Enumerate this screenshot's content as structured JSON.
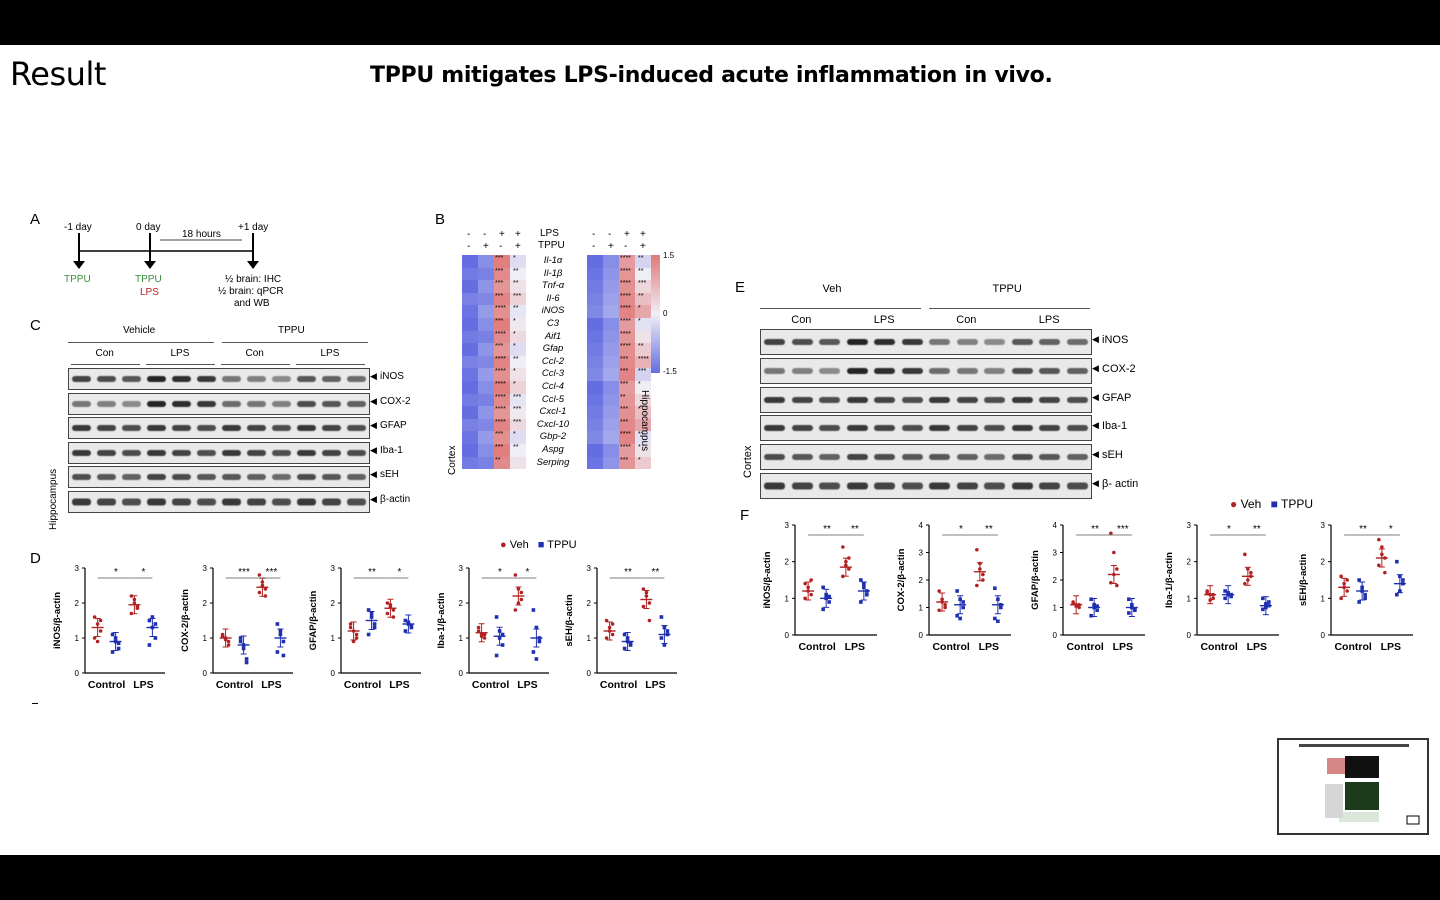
{
  "slide": {
    "section_title": "Result",
    "headline": "TPPU mitigates LPS-induced acute inflammation in vivo."
  },
  "panel_letters": {
    "a": "A",
    "b": "B",
    "c": "C",
    "d": "D",
    "e": "E",
    "f": "F"
  },
  "timeline": {
    "day_minus1": "-1 day",
    "day0": "0 day",
    "day_plus1": "+1 day",
    "interval": "18 hours",
    "tppu1": "TPPU",
    "tppu2": "TPPU",
    "lps": "LPS",
    "endpoint1": "½ brain: IHC",
    "endpoint2": "½ brain: qPCR",
    "endpoint3": "and WB",
    "tppu_color": "#3a8a3a",
    "lps_color": "#b22222"
  },
  "blot_c": {
    "group1": "Vehicle",
    "group2": "TPPU",
    "sub": [
      "Con",
      "LPS",
      "Con",
      "LPS"
    ],
    "tissue": "Hippocampus",
    "rows": [
      "iNOS",
      "COX-2",
      "GFAP",
      "Iba-1",
      "sEH",
      "β-actin"
    ]
  },
  "heatmap": {
    "header_lps": "LPS",
    "header_tppu": "TPPU",
    "signs_lps": [
      "-",
      "-",
      "+",
      "+"
    ],
    "signs_tppu": [
      "-",
      "+",
      "-",
      "+"
    ],
    "genes": [
      "Il-1α",
      "Il-1β",
      "Tnf-α",
      "Il-6",
      "iNOS",
      "C3",
      "Aif1",
      "Gfap",
      "Ccl-2",
      "Ccl-3",
      "Ccl-4",
      "Ccl-5",
      "Cxcl-1",
      "Cxcl-10",
      "Gbp-2",
      "Aspg",
      "Serping"
    ],
    "left_tissue": "Cortex",
    "right_tissue": "Hippocampus",
    "scale_max": "1.5",
    "scale_mid": "0",
    "scale_min": "-1.5",
    "cortex_sig_col3": [
      "***",
      "***",
      "***",
      "***",
      "****",
      "***",
      "****",
      "***",
      "****",
      "****",
      "****",
      "****",
      "****",
      "****",
      "***",
      "***",
      "**"
    ],
    "cortex_sig_col4": [
      "*",
      "**",
      "**",
      "***",
      "**",
      "*",
      "*",
      "*",
      "**",
      "*",
      "*",
      "***",
      "***",
      "***",
      "*",
      "**",
      ""
    ],
    "hippo_sig_col3": [
      "****",
      "****",
      "****",
      "****",
      "****",
      "****",
      "****",
      "****",
      "***",
      "***",
      "***",
      "**",
      "***",
      "***",
      "****",
      "****",
      "***"
    ],
    "hippo_sig_col4": [
      "**",
      "**",
      "***",
      "**",
      "*",
      "*",
      "",
      "**",
      "****",
      "***",
      "*",
      "",
      "*",
      "",
      "**",
      "*",
      "*"
    ]
  },
  "legend": {
    "veh": "Veh",
    "tppu": "TPPU",
    "veh_color": "#b22222",
    "tppu_color": "#1f2fb0"
  },
  "blot_e": {
    "group1": "Veh",
    "group2": "TPPU",
    "sub": [
      "Con",
      "LPS",
      "Con",
      "LPS"
    ],
    "tissue": "Cortex",
    "rows": [
      "iNOS",
      "COX-2",
      "GFAP",
      "Iba-1",
      "sEH",
      "β- actin"
    ]
  },
  "chart_data": [
    {
      "type": "scatter",
      "panel": "D",
      "ylabel": "iNOS/β-actin",
      "categories": [
        "Control",
        "LPS"
      ],
      "ylim": [
        0,
        3
      ],
      "yticks": [
        0,
        1,
        2,
        3
      ],
      "sig": [
        "*",
        "*"
      ],
      "series": [
        {
          "name": "Veh",
          "means": [
            1.3,
            1.95
          ],
          "points": [
            [
              1.6,
              1.4,
              1.2,
              1.0,
              0.9,
              1.5
            ],
            [
              2.2,
              2.0,
              1.9,
              1.7,
              2.1,
              1.85
            ]
          ]
        },
        {
          "name": "TPPU",
          "means": [
            0.9,
            1.3
          ],
          "points": [
            [
              1.1,
              0.9,
              0.7,
              0.6,
              1.0,
              0.85
            ],
            [
              1.5,
              1.3,
              1.0,
              0.8,
              1.6,
              1.4
            ]
          ]
        }
      ]
    },
    {
      "type": "scatter",
      "panel": "D",
      "ylabel": "COX-2/β-actin",
      "categories": [
        "Control",
        "LPS"
      ],
      "ylim": [
        0,
        3
      ],
      "yticks": [
        0,
        1,
        2,
        3
      ],
      "sig": [
        "***",
        "***"
      ],
      "series": [
        {
          "name": "Veh",
          "means": [
            1.0,
            2.45
          ],
          "points": [
            [
              1.1,
              1.0,
              0.9,
              1.05,
              0.95,
              0.8
            ],
            [
              2.8,
              2.6,
              2.4,
              2.3,
              2.5,
              2.2
            ]
          ]
        },
        {
          "name": "TPPU",
          "means": [
            0.8,
            1.0
          ],
          "points": [
            [
              0.9,
              0.7,
              0.4,
              1.0,
              0.8,
              0.3
            ],
            [
              1.4,
              1.1,
              0.9,
              0.6,
              1.2,
              0.5
            ]
          ]
        }
      ]
    },
    {
      "type": "scatter",
      "panel": "D",
      "ylabel": "GFAP/β-actin",
      "categories": [
        "Control",
        "LPS"
      ],
      "ylim": [
        0,
        3
      ],
      "yticks": [
        0,
        1,
        2,
        3
      ],
      "sig": [
        "**",
        "*"
      ],
      "series": [
        {
          "name": "Veh",
          "means": [
            1.2,
            1.85
          ],
          "points": [
            [
              1.4,
              1.2,
              1.0,
              1.3,
              0.9,
              1.1
            ],
            [
              2.0,
              1.9,
              1.8,
              1.7,
              1.95,
              1.6
            ]
          ]
        },
        {
          "name": "TPPU",
          "means": [
            1.5,
            1.4
          ],
          "points": [
            [
              1.8,
              1.6,
              1.3,
              1.1,
              1.7,
              1.4
            ],
            [
              1.5,
              1.4,
              1.3,
              1.2,
              1.45,
              1.35
            ]
          ]
        }
      ]
    },
    {
      "type": "scatter",
      "panel": "D",
      "ylabel": "Iba-1/β-actin",
      "categories": [
        "Control",
        "LPS"
      ],
      "ylim": [
        0,
        3
      ],
      "yticks": [
        0,
        1,
        2,
        3
      ],
      "sig": [
        "*",
        "*"
      ],
      "series": [
        {
          "name": "Veh",
          "means": [
            1.15,
            2.2
          ],
          "points": [
            [
              1.2,
              1.1,
              1.0,
              1.3,
              1.05,
              1.1
            ],
            [
              2.8,
              2.4,
              2.1,
              1.8,
              2.0,
              2.3
            ]
          ]
        },
        {
          "name": "TPPU",
          "means": [
            1.05,
            1.0
          ],
          "points": [
            [
              1.6,
              1.2,
              0.8,
              0.5,
              1.0,
              1.1
            ],
            [
              1.8,
              1.3,
              1.0,
              0.6,
              0.4,
              0.9
            ]
          ]
        }
      ]
    },
    {
      "type": "scatter",
      "panel": "D",
      "ylabel": "sEH/β-actin",
      "categories": [
        "Control",
        "LPS"
      ],
      "ylim": [
        0,
        3
      ],
      "yticks": [
        0,
        1,
        2,
        3
      ],
      "sig": [
        "**",
        "**"
      ],
      "series": [
        {
          "name": "Veh",
          "means": [
            1.2,
            2.1
          ],
          "points": [
            [
              1.5,
              1.3,
              1.1,
              1.0,
              1.2,
              1.4
            ],
            [
              2.4,
              2.2,
              2.0,
              1.9,
              2.3,
              1.5
            ]
          ]
        },
        {
          "name": "TPPU",
          "means": [
            0.9,
            1.1
          ],
          "points": [
            [
              1.1,
              0.9,
              0.8,
              0.7,
              1.0,
              0.85
            ],
            [
              1.6,
              1.3,
              1.1,
              1.0,
              0.8,
              1.2
            ]
          ]
        }
      ]
    },
    {
      "type": "scatter",
      "panel": "F",
      "ylabel": "iNOS/β-actin",
      "categories": [
        "Control",
        "LPS"
      ],
      "ylim": [
        0,
        3
      ],
      "yticks": [
        0,
        1,
        2,
        3
      ],
      "sig": [
        "**",
        "**"
      ],
      "series": [
        {
          "name": "Veh",
          "means": [
            1.2,
            1.85
          ],
          "points": [
            [
              1.4,
              1.3,
              1.1,
              1.0,
              1.2,
              1.5
            ],
            [
              2.4,
              2.0,
              1.8,
              1.6,
              1.9,
              2.1
            ]
          ]
        },
        {
          "name": "TPPU",
          "means": [
            1.0,
            1.2
          ],
          "points": [
            [
              1.3,
              1.1,
              0.9,
              0.7,
              1.0,
              1.05
            ],
            [
              1.5,
              1.3,
              1.1,
              0.9,
              1.4,
              1.2
            ]
          ]
        }
      ]
    },
    {
      "type": "scatter",
      "panel": "F",
      "ylabel": "COX-2/β-actin",
      "categories": [
        "Control",
        "LPS"
      ],
      "ylim": [
        0,
        4
      ],
      "yticks": [
        0,
        1,
        2,
        3,
        4
      ],
      "sig": [
        "*",
        "**"
      ],
      "series": [
        {
          "name": "Veh",
          "means": [
            1.2,
            2.3
          ],
          "points": [
            [
              1.6,
              1.3,
              1.1,
              0.9,
              1.2,
              1.0
            ],
            [
              3.1,
              2.6,
              2.2,
              1.8,
              2.4,
              2.0
            ]
          ]
        },
        {
          "name": "TPPU",
          "means": [
            1.1,
            1.1
          ],
          "points": [
            [
              1.6,
              1.3,
              1.0,
              0.7,
              0.6,
              1.2
            ],
            [
              1.7,
              1.3,
              1.0,
              0.6,
              0.5,
              1.1
            ]
          ]
        }
      ]
    },
    {
      "type": "scatter",
      "panel": "F",
      "ylabel": "GFAP/β-actin",
      "categories": [
        "Control",
        "LPS"
      ],
      "ylim": [
        0,
        4
      ],
      "yticks": [
        0,
        1,
        2,
        3,
        4
      ],
      "sig": [
        "**",
        "***"
      ],
      "series": [
        {
          "name": "Veh",
          "means": [
            1.1,
            2.2
          ],
          "points": [
            [
              1.2,
              1.1,
              1.0,
              1.15,
              1.05,
              1.1
            ],
            [
              3.7,
              3.0,
              2.4,
              1.9,
              2.2,
              1.8
            ]
          ]
        },
        {
          "name": "TPPU",
          "means": [
            1.0,
            1.0
          ],
          "points": [
            [
              1.3,
              1.1,
              0.9,
              0.7,
              1.0,
              1.05
            ],
            [
              1.3,
              1.1,
              0.9,
              0.8,
              1.0,
              0.95
            ]
          ]
        }
      ]
    },
    {
      "type": "scatter",
      "panel": "F",
      "ylabel": "Iba-1/β-actin",
      "categories": [
        "Control",
        "LPS"
      ],
      "ylim": [
        0,
        3
      ],
      "yticks": [
        0,
        1,
        2,
        3
      ],
      "sig": [
        "*",
        "**"
      ],
      "series": [
        {
          "name": "Veh",
          "means": [
            1.1,
            1.6
          ],
          "points": [
            [
              1.2,
              1.1,
              1.0,
              1.15,
              0.95,
              1.1
            ],
            [
              2.2,
              1.8,
              1.6,
              1.4,
              1.5,
              1.7
            ]
          ]
        },
        {
          "name": "TPPU",
          "means": [
            1.1,
            0.8
          ],
          "points": [
            [
              1.2,
              1.1,
              1.05,
              1.0,
              1.15,
              1.1
            ],
            [
              1.0,
              0.85,
              0.8,
              0.7,
              0.75,
              0.9
            ]
          ]
        }
      ]
    },
    {
      "type": "scatter",
      "panel": "F",
      "ylabel": "sEH/β-actin",
      "categories": [
        "Control",
        "LPS"
      ],
      "ylim": [
        0,
        3
      ],
      "yticks": [
        0,
        1,
        2,
        3
      ],
      "sig": [
        "**",
        "*"
      ],
      "series": [
        {
          "name": "Veh",
          "means": [
            1.3,
            2.1
          ],
          "points": [
            [
              1.6,
              1.4,
              1.2,
              1.0,
              1.3,
              1.5
            ],
            [
              2.6,
              2.4,
              2.1,
              1.9,
              2.2,
              1.7
            ]
          ]
        },
        {
          "name": "TPPU",
          "means": [
            1.2,
            1.4
          ],
          "points": [
            [
              1.5,
              1.3,
              1.1,
              0.9,
              1.2,
              1.0
            ],
            [
              2.0,
              1.6,
              1.4,
              1.1,
              1.2,
              1.5
            ]
          ]
        }
      ]
    }
  ]
}
